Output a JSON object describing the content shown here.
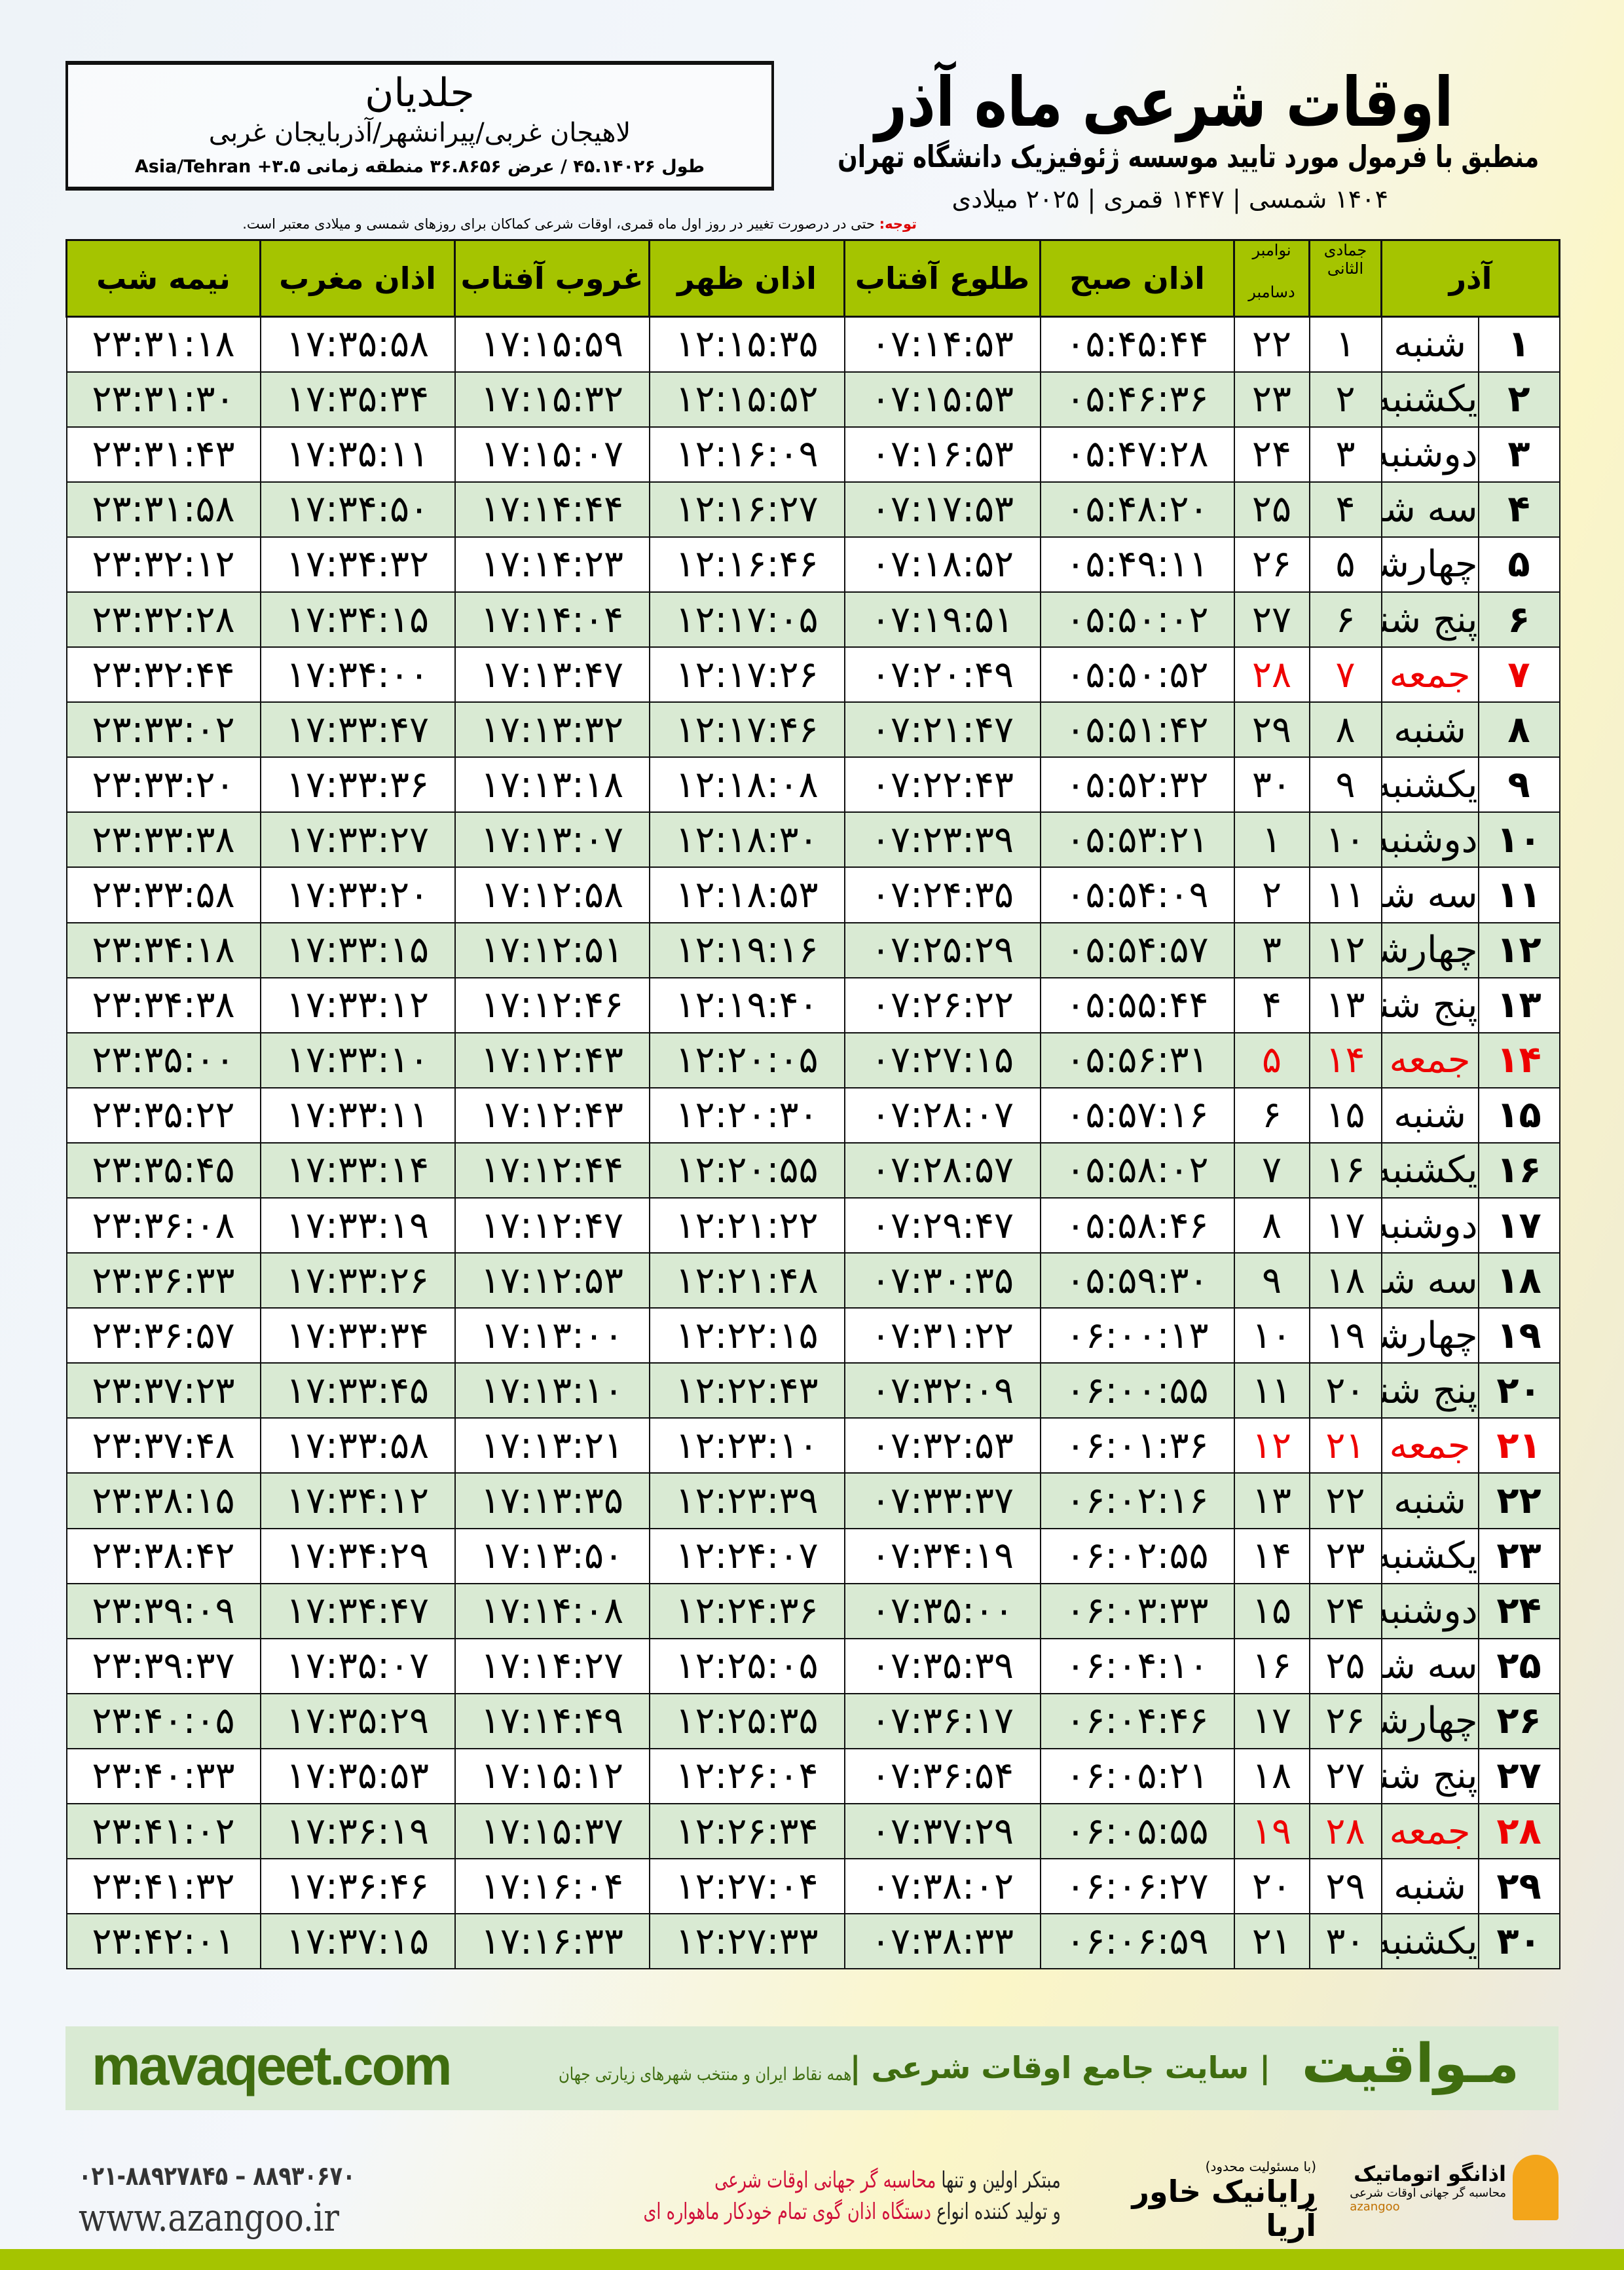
{
  "header": {
    "title": "اوقات شرعی ماه آذر",
    "subtitle": "منطبق با فرمول مورد تایید موسسه ژئوفیزیک دانشگاه تهران",
    "years": "۱۴۰۴ شمسی | ۱۴۴۷ قمری | ۲۰۲۵ میلادی"
  },
  "location": {
    "city": "جلدیان",
    "region": "لاهیجان غربی/پیرانشهر/آذربایجان غربی",
    "coords": "طول ۴۵.۱۴۰۲۶ / عرض ۳۶.۸۶۵۶ منطقه زمانی ۳.۵+ Asia/Tehran"
  },
  "note": {
    "label": "توجه:",
    "text": " حتی در درصورت تغییر در روز اول ماه قمری، اوقات شرعی کماکان برای روزهای شمسی و میلادی معتبر است."
  },
  "columns": {
    "day": "آذر",
    "hijri": "جمادی الثانی",
    "gregorian_top": "نوامبر",
    "gregorian_bottom": "دسامبر",
    "fajr": "اذان صبح",
    "sunrise": "طلوع آفتاب",
    "dhuhr": "اذان ظهر",
    "sunset": "غروب آفتاب",
    "maghrib": "اذان مغرب",
    "midnight": "نیمه شب"
  },
  "colors": {
    "header": "#a5c400",
    "row_alt": "#d9ead3",
    "friday": "#e00000",
    "brand_green": "#3f6d0f"
  },
  "rows": [
    [
      "۱",
      "شنبه",
      "۱",
      "۲۲",
      "۰۵:۴۵:۴۴",
      "۰۷:۱۴:۵۳",
      "۱۲:۱۵:۳۵",
      "۱۷:۱۵:۵۹",
      "۱۷:۳۵:۵۸",
      "۲۳:۳۱:۱۸"
    ],
    [
      "۲",
      "یکشنبه",
      "۲",
      "۲۳",
      "۰۵:۴۶:۳۶",
      "۰۷:۱۵:۵۳",
      "۱۲:۱۵:۵۲",
      "۱۷:۱۵:۳۲",
      "۱۷:۳۵:۳۴",
      "۲۳:۳۱:۳۰"
    ],
    [
      "۳",
      "دوشنبه",
      "۳",
      "۲۴",
      "۰۵:۴۷:۲۸",
      "۰۷:۱۶:۵۳",
      "۱۲:۱۶:۰۹",
      "۱۷:۱۵:۰۷",
      "۱۷:۳۵:۱۱",
      "۲۳:۳۱:۴۳"
    ],
    [
      "۴",
      "سه شنبه",
      "۴",
      "۲۵",
      "۰۵:۴۸:۲۰",
      "۰۷:۱۷:۵۳",
      "۱۲:۱۶:۲۷",
      "۱۷:۱۴:۴۴",
      "۱۷:۳۴:۵۰",
      "۲۳:۳۱:۵۸"
    ],
    [
      "۵",
      "چهارشنبه",
      "۵",
      "۲۶",
      "۰۵:۴۹:۱۱",
      "۰۷:۱۸:۵۲",
      "۱۲:۱۶:۴۶",
      "۱۷:۱۴:۲۳",
      "۱۷:۳۴:۳۲",
      "۲۳:۳۲:۱۲"
    ],
    [
      "۶",
      "پنج شنبه",
      "۶",
      "۲۷",
      "۰۵:۵۰:۰۲",
      "۰۷:۱۹:۵۱",
      "۱۲:۱۷:۰۵",
      "۱۷:۱۴:۰۴",
      "۱۷:۳۴:۱۵",
      "۲۳:۳۲:۲۸"
    ],
    [
      "۷",
      "جمعه",
      "۷",
      "۲۸",
      "۰۵:۵۰:۵۲",
      "۰۷:۲۰:۴۹",
      "۱۲:۱۷:۲۶",
      "۱۷:۱۳:۴۷",
      "۱۷:۳۴:۰۰",
      "۲۳:۳۲:۴۴"
    ],
    [
      "۸",
      "شنبه",
      "۸",
      "۲۹",
      "۰۵:۵۱:۴۲",
      "۰۷:۲۱:۴۷",
      "۱۲:۱۷:۴۶",
      "۱۷:۱۳:۳۲",
      "۱۷:۳۳:۴۷",
      "۲۳:۳۳:۰۲"
    ],
    [
      "۹",
      "یکشنبه",
      "۹",
      "۳۰",
      "۰۵:۵۲:۳۲",
      "۰۷:۲۲:۴۳",
      "۱۲:۱۸:۰۸",
      "۱۷:۱۳:۱۸",
      "۱۷:۳۳:۳۶",
      "۲۳:۳۳:۲۰"
    ],
    [
      "۱۰",
      "دوشنبه",
      "۱۰",
      "۱",
      "۰۵:۵۳:۲۱",
      "۰۷:۲۳:۳۹",
      "۱۲:۱۸:۳۰",
      "۱۷:۱۳:۰۷",
      "۱۷:۳۳:۲۷",
      "۲۳:۳۳:۳۸"
    ],
    [
      "۱۱",
      "سه شنبه",
      "۱۱",
      "۲",
      "۰۵:۵۴:۰۹",
      "۰۷:۲۴:۳۵",
      "۱۲:۱۸:۵۳",
      "۱۷:۱۲:۵۸",
      "۱۷:۳۳:۲۰",
      "۲۳:۳۳:۵۸"
    ],
    [
      "۱۲",
      "چهارشنبه",
      "۱۲",
      "۳",
      "۰۵:۵۴:۵۷",
      "۰۷:۲۵:۲۹",
      "۱۲:۱۹:۱۶",
      "۱۷:۱۲:۵۱",
      "۱۷:۳۳:۱۵",
      "۲۳:۳۴:۱۸"
    ],
    [
      "۱۳",
      "پنج شنبه",
      "۱۳",
      "۴",
      "۰۵:۵۵:۴۴",
      "۰۷:۲۶:۲۲",
      "۱۲:۱۹:۴۰",
      "۱۷:۱۲:۴۶",
      "۱۷:۳۳:۱۲",
      "۲۳:۳۴:۳۸"
    ],
    [
      "۱۴",
      "جمعه",
      "۱۴",
      "۵",
      "۰۵:۵۶:۳۱",
      "۰۷:۲۷:۱۵",
      "۱۲:۲۰:۰۵",
      "۱۷:۱۲:۴۳",
      "۱۷:۳۳:۱۰",
      "۲۳:۳۵:۰۰"
    ],
    [
      "۱۵",
      "شنبه",
      "۱۵",
      "۶",
      "۰۵:۵۷:۱۶",
      "۰۷:۲۸:۰۷",
      "۱۲:۲۰:۳۰",
      "۱۷:۱۲:۴۳",
      "۱۷:۳۳:۱۱",
      "۲۳:۳۵:۲۲"
    ],
    [
      "۱۶",
      "یکشنبه",
      "۱۶",
      "۷",
      "۰۵:۵۸:۰۲",
      "۰۷:۲۸:۵۷",
      "۱۲:۲۰:۵۵",
      "۱۷:۱۲:۴۴",
      "۱۷:۳۳:۱۴",
      "۲۳:۳۵:۴۵"
    ],
    [
      "۱۷",
      "دوشنبه",
      "۱۷",
      "۸",
      "۰۵:۵۸:۴۶",
      "۰۷:۲۹:۴۷",
      "۱۲:۲۱:۲۲",
      "۱۷:۱۲:۴۷",
      "۱۷:۳۳:۱۹",
      "۲۳:۳۶:۰۸"
    ],
    [
      "۱۸",
      "سه شنبه",
      "۱۸",
      "۹",
      "۰۵:۵۹:۳۰",
      "۰۷:۳۰:۳۵",
      "۱۲:۲۱:۴۸",
      "۱۷:۱۲:۵۳",
      "۱۷:۳۳:۲۶",
      "۲۳:۳۶:۳۳"
    ],
    [
      "۱۹",
      "چهارشنبه",
      "۱۹",
      "۱۰",
      "۰۶:۰۰:۱۳",
      "۰۷:۳۱:۲۲",
      "۱۲:۲۲:۱۵",
      "۱۷:۱۳:۰۰",
      "۱۷:۳۳:۳۴",
      "۲۳:۳۶:۵۷"
    ],
    [
      "۲۰",
      "پنج شنبه",
      "۲۰",
      "۱۱",
      "۰۶:۰۰:۵۵",
      "۰۷:۳۲:۰۹",
      "۱۲:۲۲:۴۳",
      "۱۷:۱۳:۱۰",
      "۱۷:۳۳:۴۵",
      "۲۳:۳۷:۲۳"
    ],
    [
      "۲۱",
      "جمعه",
      "۲۱",
      "۱۲",
      "۰۶:۰۱:۳۶",
      "۰۷:۳۲:۵۳",
      "۱۲:۲۳:۱۰",
      "۱۷:۱۳:۲۱",
      "۱۷:۳۳:۵۸",
      "۲۳:۳۷:۴۸"
    ],
    [
      "۲۲",
      "شنبه",
      "۲۲",
      "۱۳",
      "۰۶:۰۲:۱۶",
      "۰۷:۳۳:۳۷",
      "۱۲:۲۳:۳۹",
      "۱۷:۱۳:۳۵",
      "۱۷:۳۴:۱۲",
      "۲۳:۳۸:۱۵"
    ],
    [
      "۲۳",
      "یکشنبه",
      "۲۳",
      "۱۴",
      "۰۶:۰۲:۵۵",
      "۰۷:۳۴:۱۹",
      "۱۲:۲۴:۰۷",
      "۱۷:۱۳:۵۰",
      "۱۷:۳۴:۲۹",
      "۲۳:۳۸:۴۲"
    ],
    [
      "۲۴",
      "دوشنبه",
      "۲۴",
      "۱۵",
      "۰۶:۰۳:۳۳",
      "۰۷:۳۵:۰۰",
      "۱۲:۲۴:۳۶",
      "۱۷:۱۴:۰۸",
      "۱۷:۳۴:۴۷",
      "۲۳:۳۹:۰۹"
    ],
    [
      "۲۵",
      "سه شنبه",
      "۲۵",
      "۱۶",
      "۰۶:۰۴:۱۰",
      "۰۷:۳۵:۳۹",
      "۱۲:۲۵:۰۵",
      "۱۷:۱۴:۲۷",
      "۱۷:۳۵:۰۷",
      "۲۳:۳۹:۳۷"
    ],
    [
      "۲۶",
      "چهارشنبه",
      "۲۶",
      "۱۷",
      "۰۶:۰۴:۴۶",
      "۰۷:۳۶:۱۷",
      "۱۲:۲۵:۳۵",
      "۱۷:۱۴:۴۹",
      "۱۷:۳۵:۲۹",
      "۲۳:۴۰:۰۵"
    ],
    [
      "۲۷",
      "پنج شنبه",
      "۲۷",
      "۱۸",
      "۰۶:۰۵:۲۱",
      "۰۷:۳۶:۵۴",
      "۱۲:۲۶:۰۴",
      "۱۷:۱۵:۱۲",
      "۱۷:۳۵:۵۳",
      "۲۳:۴۰:۳۳"
    ],
    [
      "۲۸",
      "جمعه",
      "۲۸",
      "۱۹",
      "۰۶:۰۵:۵۵",
      "۰۷:۳۷:۲۹",
      "۱۲:۲۶:۳۴",
      "۱۷:۱۵:۳۷",
      "۱۷:۳۶:۱۹",
      "۲۳:۴۱:۰۲"
    ],
    [
      "۲۹",
      "شنبه",
      "۲۹",
      "۲۰",
      "۰۶:۰۶:۲۷",
      "۰۷:۳۸:۰۲",
      "۱۲:۲۷:۰۴",
      "۱۷:۱۶:۰۴",
      "۱۷:۳۶:۴۶",
      "۲۳:۴۱:۳۲"
    ],
    [
      "۳۰",
      "یکشنبه",
      "۳۰",
      "۲۱",
      "۰۶:۰۶:۵۹",
      "۰۷:۳۸:۳۳",
      "۱۲:۲۷:۳۳",
      "۱۷:۱۶:۳۳",
      "۱۷:۳۷:۱۵",
      "۲۳:۴۲:۰۱"
    ]
  ],
  "friday_label": "جمعه",
  "footer": {
    "logo": "مـواقیت",
    "site": "| سایت جامع اوقات شرعی |",
    "desc": "همه نقاط ایران و منتخب شهرهای زیارتی جهان",
    "url": "mavaqeet.com"
  },
  "ads": {
    "phone": "۰۲۱-۸۸۹۲۷۸۴۵ – ۸۸۹۳۰۶۷۰",
    "web": "www.azangoo.ir",
    "promo1a": "مبتکر اولین و تنها ",
    "promo1b": "محاسبه گر جهانی اوقات شرعی",
    "promo2a": "و تولید کننده انواع ",
    "promo2b": "دستگاه اذان گوی تمام خودکار ماهواره ای",
    "raya_small": "(با مسئولیت محدود)",
    "raya": "رایانیک خاور آریا",
    "az_name": "اذانگو اتوماتیک",
    "az_sub": "محاسبه گر جهانی اوقات شرعی",
    "az_latin": "azangoo"
  }
}
